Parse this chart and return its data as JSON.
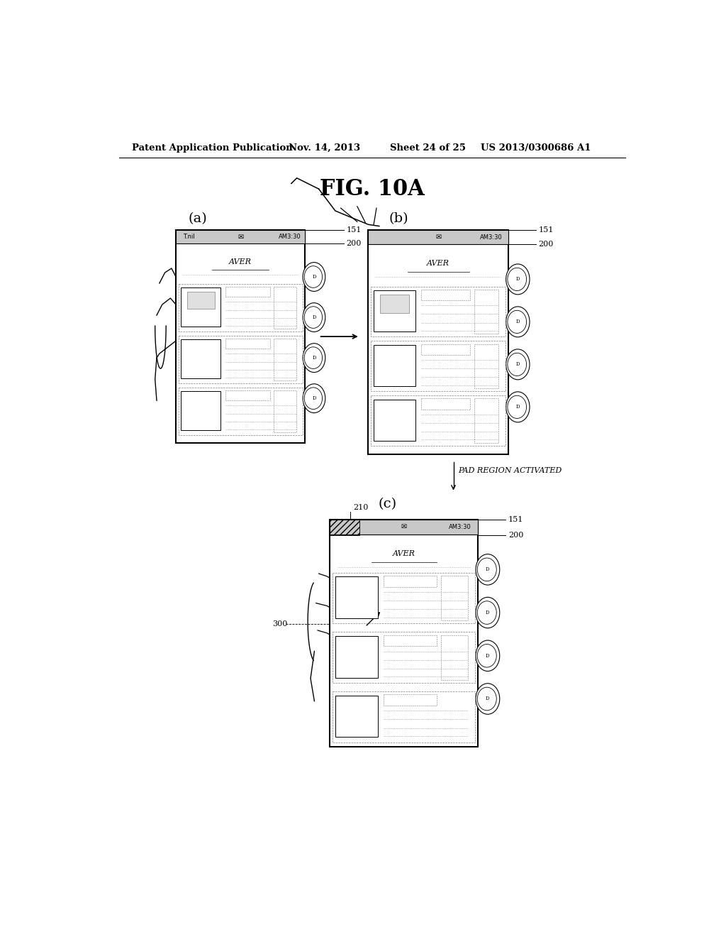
{
  "bg_color": "#ffffff",
  "header_text1": "Patent Application Publication",
  "header_text2": "Nov. 14, 2013",
  "header_text3": "Sheet 24 of 25",
  "header_text4": "US 2013/0300686 A1",
  "fig_title": "FIG. 10A",
  "label_a": "(a)",
  "label_b": "(b)",
  "label_c": "(c)",
  "pad_text": "PAD REGION ACTIVATED"
}
